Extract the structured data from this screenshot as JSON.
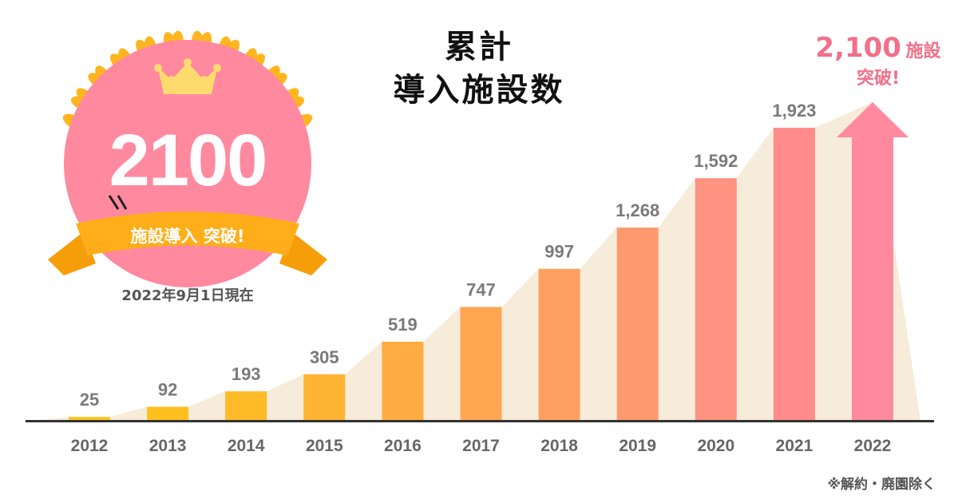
{
  "title_line1": "累計",
  "title_line2": "導入施設数",
  "badge": {
    "number": "2100",
    "ribbon": "施設導入 突破!",
    "as_of": "2022年9月1日現在"
  },
  "callout": {
    "line1_num": "2,100",
    "line1_unit": "施設",
    "line2": "突破!"
  },
  "footnote": "※解約・廃園除く",
  "colors": {
    "pink": "#FF8AA0",
    "ribbon": "#FFAE1A",
    "laurel": "#FFB51E",
    "crown": "#FFDB6E",
    "area": "#F7EBDA",
    "axis": "#333333"
  },
  "chart_data": {
    "type": "bar",
    "categories": [
      "2012",
      "2013",
      "2014",
      "2015",
      "2016",
      "2017",
      "2018",
      "2019",
      "2020",
      "2021",
      "2022"
    ],
    "values": [
      25,
      92,
      193,
      305,
      519,
      747,
      997,
      1268,
      1592,
      1923,
      null
    ],
    "labels": [
      "25",
      "92",
      "193",
      "305",
      "519",
      "747",
      "997",
      "1,268",
      "1,592",
      "1,923",
      ""
    ],
    "bar_colors": [
      "#FFC51A",
      "#FFC01F",
      "#FFBA28",
      "#FFB332",
      "#FFAC42",
      "#FFA753",
      "#FFA060",
      "#FF9970",
      "#FF9280",
      "#FF8C8A",
      "#FF8AA0"
    ],
    "last_bar": "arrow",
    "ylabel": "",
    "xlabel": "",
    "grid": false
  }
}
